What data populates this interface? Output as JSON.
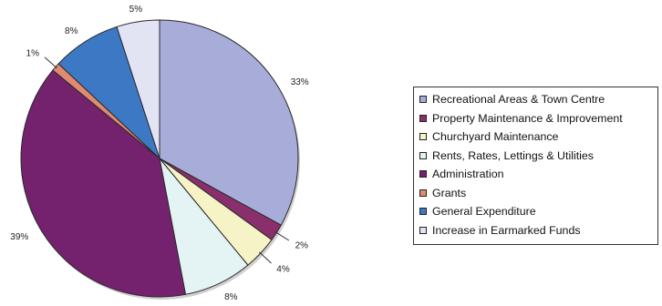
{
  "chart_data": {
    "type": "pie",
    "title": "",
    "start_angle_deg": 0,
    "direction": "clockwise",
    "legend_position": "right",
    "slices": [
      {
        "name": "Recreational Areas & Town Centre",
        "value": 33,
        "label": "33%",
        "color": "#a8acd8"
      },
      {
        "name": "Property Maintenance & Improvement",
        "value": 2,
        "label": "2%",
        "color": "#8a2f6b"
      },
      {
        "name": "Churchyard Maintenance",
        "value": 4,
        "label": "4%",
        "color": "#f6f3c6"
      },
      {
        "name": "Rents, Rates, Lettings & Utilities",
        "value": 8,
        "label": "8%",
        "color": "#e4f4f4"
      },
      {
        "name": "Administration",
        "value": 39,
        "label": "39%",
        "color": "#74216e"
      },
      {
        "name": "Grants",
        "value": 1,
        "label": "1%",
        "color": "#e08a70"
      },
      {
        "name": "General Expenditure",
        "value": 8,
        "label": "8%",
        "color": "#3d78c4"
      },
      {
        "name": "Increase in Earmarked Funds",
        "value": 5,
        "label": "5%",
        "color": "#e2e4f4"
      }
    ]
  }
}
